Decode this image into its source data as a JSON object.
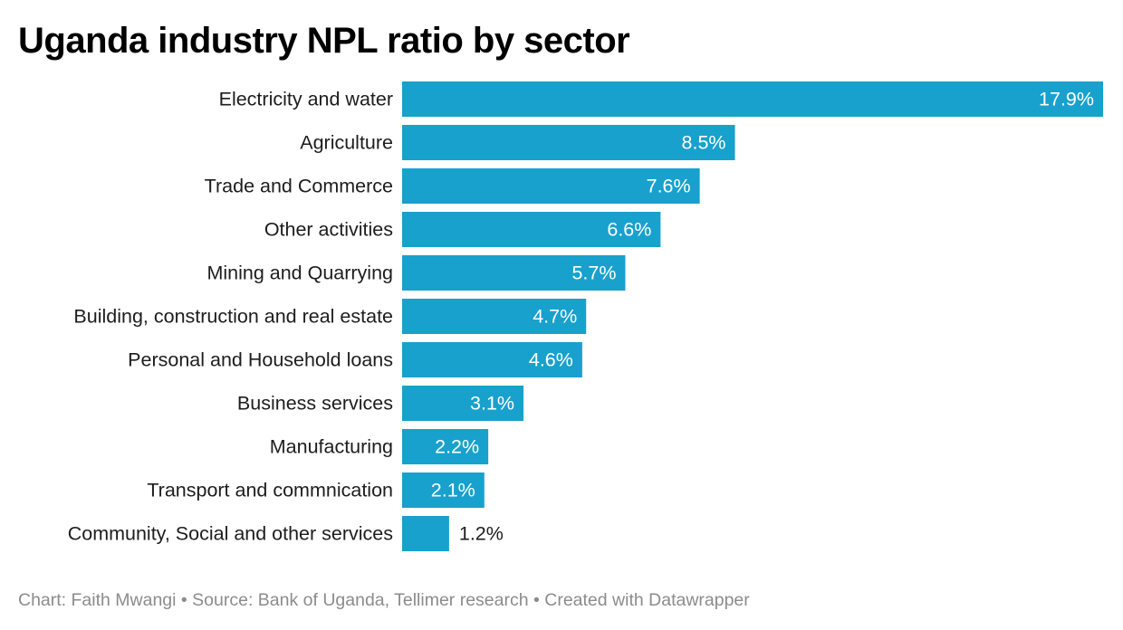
{
  "title": "Uganda industry NPL ratio by sector",
  "footer": {
    "credit": "Chart: Faith Mwangi",
    "separator": "•",
    "source": "Source: Bank of Uganda, Tellimer research",
    "created": "Created with Datawrapper"
  },
  "colors": {
    "bar": "#18a1cd",
    "label_inside": "#ffffff",
    "label_outside": "#1d1d1d"
  },
  "chart_data": {
    "type": "bar",
    "orientation": "horizontal",
    "title": "Uganda industry NPL ratio by sector",
    "xlabel": "",
    "ylabel": "",
    "unit": "%",
    "grid": false,
    "categories": [
      "Electricity and water",
      "Agriculture",
      "Trade and Commerce",
      "Other activities",
      "Mining and Quarrying",
      "Building, construction and real estate",
      "Personal and Household loans",
      "Business services",
      "Manufacturing",
      "Transport and commnication",
      "Community, Social and other services"
    ],
    "values": [
      17.9,
      8.5,
      7.6,
      6.6,
      5.7,
      4.7,
      4.6,
      3.1,
      2.2,
      2.1,
      1.2
    ],
    "value_labels": [
      "17.9%",
      "8.5%",
      "7.6%",
      "6.6%",
      "5.7%",
      "4.7%",
      "4.6%",
      "3.1%",
      "2.2%",
      "2.1%",
      "1.2%"
    ],
    "xlim": [
      0,
      17.9
    ]
  }
}
